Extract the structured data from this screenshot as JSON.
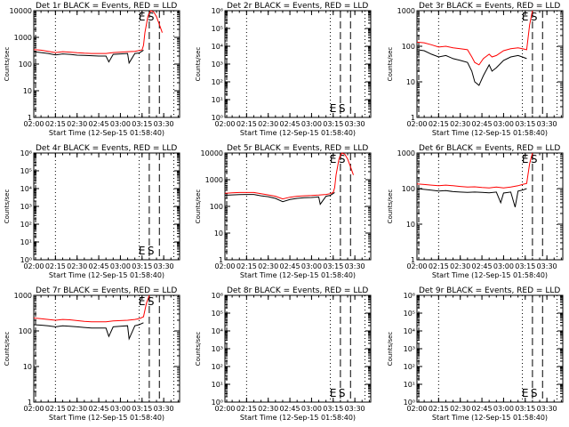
{
  "chart_data": {
    "type": "line",
    "layout": "3x3 grid of small-multiple panels",
    "colors": {
      "events": "#000000",
      "lld": "#ff0000",
      "axes": "#000000",
      "background": "#ffffff"
    },
    "y_scale": "log",
    "xlabel": "Start Time (12-Sep-15 01:58:40)",
    "ylabel": "Counts/sec",
    "x_ticks": [
      "02:00",
      "02:15",
      "02:30",
      "02:45",
      "03:00",
      "03:15",
      "03:30"
    ],
    "x_tick_minutes": [
      120,
      135,
      150,
      165,
      180,
      195,
      210
    ],
    "x_range_minutes": [
      120,
      221
    ],
    "dotted_markers_minutes": [
      135,
      193,
      217
    ],
    "dashed_markers_minutes": [
      200,
      207
    ],
    "marker_labels": [
      "E",
      "S"
    ],
    "panels": [
      {
        "title": "Det 1r BLACK = Events, RED = LLD",
        "ylim": [
          1,
          10000
        ],
        "y_tick_labels": [
          "1",
          "10",
          "100",
          "1000",
          "10000"
        ],
        "has_data": true,
        "series": [
          {
            "name": "BLACK = Events",
            "color": "#000000",
            "x": [
              120,
              125,
              130,
              135,
              140,
              145,
              150,
              155,
              160,
              165,
              170,
              172,
              175,
              180,
              185,
              186,
              190,
              193,
              196
            ],
            "y": [
              290,
              270,
              250,
              220,
              240,
              230,
              215,
              210,
              205,
              200,
              200,
              120,
              230,
              240,
              250,
              110,
              250,
              260,
              330
            ]
          },
          {
            "name": "RED = LLD",
            "color": "#ff0000",
            "x": [
              120,
              125,
              130,
              135,
              140,
              145,
              150,
              155,
              160,
              165,
              170,
              175,
              180,
              185,
              190,
              193,
              195,
              196,
              197,
              199,
              201,
              203,
              205,
              207,
              209
            ],
            "y": [
              350,
              330,
              300,
              270,
              290,
              280,
              265,
              255,
              250,
              250,
              250,
              270,
              280,
              290,
              300,
              320,
              340,
              500,
              1500,
              6000,
              10000,
              9000,
              6000,
              3000,
              1500
            ]
          }
        ]
      },
      {
        "title": "Det 2r BLACK = Events, RED = LLD",
        "ylim": [
          1,
          1000000
        ],
        "y_tick_labels": [
          "10⁰",
          "10¹",
          "10²",
          "10³",
          "10⁴",
          "10⁵",
          "10⁶"
        ],
        "has_data": false,
        "series": []
      },
      {
        "title": "Det 3r BLACK = Events, RED = LLD",
        "ylim": [
          1,
          1000
        ],
        "y_tick_labels": [
          "1",
          "10",
          "100",
          "1000"
        ],
        "has_data": true,
        "series": [
          {
            "name": "BLACK = Events",
            "color": "#000000",
            "x": [
              120,
              125,
              130,
              135,
              140,
              145,
              150,
              155,
              158,
              160,
              163,
              166,
              170,
              172,
              175,
              180,
              185,
              190,
              193,
              196
            ],
            "y": [
              80,
              75,
              60,
              50,
              55,
              45,
              40,
              35,
              20,
              10,
              8,
              15,
              30,
              20,
              25,
              40,
              50,
              55,
              50,
              45
            ]
          },
          {
            "name": "RED = LLD",
            "color": "#ff0000",
            "x": [
              120,
              125,
              130,
              135,
              140,
              145,
              150,
              155,
              158,
              160,
              163,
              166,
              170,
              172,
              175,
              180,
              185,
              190,
              193,
              196,
              198,
              200
            ],
            "y": [
              130,
              125,
              110,
              95,
              100,
              90,
              85,
              80,
              50,
              35,
              30,
              45,
              60,
              50,
              55,
              75,
              85,
              90,
              85,
              80,
              400,
              1000
            ]
          }
        ]
      },
      {
        "title": "Det 4r BLACK = Events, RED = LLD",
        "ylim": [
          1,
          1000000
        ],
        "y_tick_labels": [
          "10⁰",
          "10¹",
          "10²",
          "10³",
          "10⁴",
          "10⁵",
          "10⁶"
        ],
        "has_data": false,
        "series": []
      },
      {
        "title": "Det 5r BLACK = Events, RED = LLD",
        "ylim": [
          1,
          10000
        ],
        "y_tick_labels": [
          "1",
          "10",
          "100",
          "1000",
          "10000"
        ],
        "has_data": true,
        "series": [
          {
            "name": "BLACK = Events",
            "color": "#000000",
            "x": [
              120,
              125,
              130,
              135,
              140,
              145,
              150,
              155,
              160,
              165,
              170,
              175,
              180,
              185,
              186,
              190,
              193,
              196
            ],
            "y": [
              260,
              270,
              275,
              280,
              280,
              250,
              230,
              200,
              150,
              180,
              200,
              210,
              215,
              225,
              120,
              240,
              260,
              330
            ]
          },
          {
            "name": "RED = LLD",
            "color": "#ff0000",
            "x": [
              120,
              125,
              130,
              135,
              140,
              145,
              150,
              155,
              160,
              165,
              170,
              175,
              180,
              185,
              190,
              193,
              195,
              196,
              197,
              199,
              201,
              203,
              205,
              207,
              209
            ],
            "y": [
              310,
              320,
              330,
              330,
              330,
              300,
              270,
              240,
              190,
              220,
              240,
              250,
              255,
              265,
              280,
              300,
              330,
              500,
              1500,
              6000,
              10000,
              9000,
              6000,
              3000,
              1500
            ]
          }
        ]
      },
      {
        "title": "Det 6r BLACK = Events, RED = LLD",
        "ylim": [
          1,
          1000
        ],
        "y_tick_labels": [
          "1",
          "10",
          "100",
          "1000"
        ],
        "has_data": true,
        "series": [
          {
            "name": "BLACK = Events",
            "color": "#000000",
            "x": [
              120,
              125,
              130,
              135,
              140,
              145,
              150,
              155,
              160,
              165,
              170,
              175,
              178,
              180,
              185,
              188,
              190,
              193,
              196
            ],
            "y": [
              100,
              95,
              90,
              85,
              88,
              82,
              80,
              78,
              80,
              78,
              76,
              80,
              40,
              75,
              80,
              30,
              85,
              90,
              100
            ]
          },
          {
            "name": "RED = LLD",
            "color": "#ff0000",
            "x": [
              120,
              125,
              130,
              135,
              140,
              145,
              150,
              155,
              160,
              165,
              170,
              175,
              180,
              185,
              190,
              193,
              196,
              198,
              200
            ],
            "y": [
              135,
              130,
              125,
              120,
              125,
              120,
              115,
              110,
              112,
              108,
              105,
              110,
              105,
              110,
              120,
              130,
              140,
              500,
              1000
            ]
          }
        ]
      },
      {
        "title": "Det 7r BLACK = Events, RED = LLD",
        "ylim": [
          1,
          1000
        ],
        "y_tick_labels": [
          "1",
          "10",
          "100",
          "1000"
        ],
        "has_data": true,
        "series": [
          {
            "name": "BLACK = Events",
            "color": "#000000",
            "x": [
              120,
              125,
              130,
              135,
              140,
              145,
              150,
              155,
              160,
              165,
              170,
              172,
              175,
              180,
              185,
              186,
              190,
              193,
              196
            ],
            "y": [
              150,
              145,
              140,
              130,
              140,
              135,
              130,
              125,
              120,
              120,
              120,
              70,
              130,
              135,
              140,
              60,
              140,
              150,
              170
            ]
          },
          {
            "name": "RED = LLD",
            "color": "#ff0000",
            "x": [
              120,
              125,
              130,
              135,
              140,
              145,
              150,
              155,
              160,
              165,
              170,
              175,
              180,
              185,
              190,
              193,
              196,
              198,
              200
            ],
            "y": [
              230,
              220,
              210,
              200,
              210,
              205,
              195,
              185,
              180,
              180,
              180,
              190,
              195,
              200,
              210,
              220,
              250,
              600,
              1000
            ]
          }
        ]
      },
      {
        "title": "Det 8r BLACK = Events, RED = LLD",
        "ylim": [
          1,
          1000000
        ],
        "y_tick_labels": [
          "10⁰",
          "10¹",
          "10²",
          "10³",
          "10⁴",
          "10⁵",
          "10⁶"
        ],
        "has_data": false,
        "series": []
      },
      {
        "title": "Det 9r BLACK = Events, RED = LLD",
        "ylim": [
          1,
          1000000
        ],
        "y_tick_labels": [
          "10⁰",
          "10¹",
          "10²",
          "10³",
          "10⁴",
          "10⁵",
          "10⁶"
        ],
        "has_data": false,
        "series": []
      }
    ]
  }
}
